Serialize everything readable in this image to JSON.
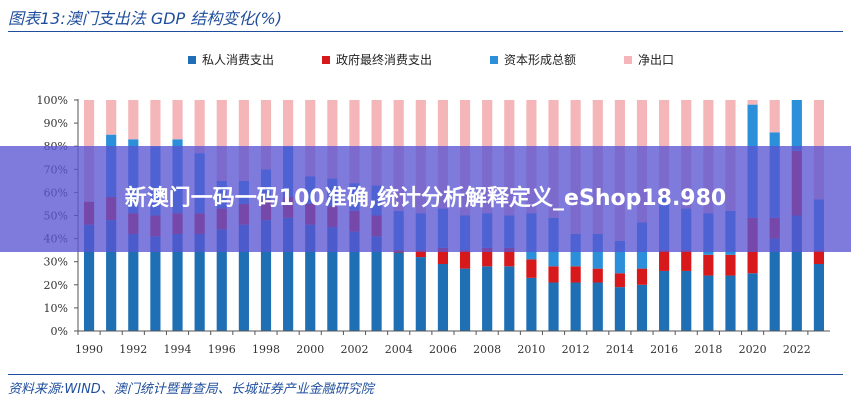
{
  "figure": {
    "title": "图表13:澳门支出法 GDP 结构变化(%)",
    "source": "资料来源:WIND、澳门统计暨普查局、长城证券产业金融研究院"
  },
  "banner": {
    "text": "新澳门一码一码100准确,统计分析解释定义_eShop18.980"
  },
  "colors": {
    "private": "#1f6fb5",
    "government": "#d7191c",
    "capital": "#2c8fd9",
    "netexport": "#f4b6b8",
    "axis": "#555555",
    "title": "#1f4e9c"
  },
  "chart_data": {
    "type": "bar",
    "stacked": true,
    "title": "",
    "xlabel": "",
    "ylabel": "",
    "ylim": [
      0,
      100
    ],
    "yticks": [
      "0%",
      "10%",
      "20%",
      "30%",
      "40%",
      "50%",
      "60%",
      "70%",
      "80%",
      "90%",
      "100%"
    ],
    "xtick_labels": [
      "1990",
      "1992",
      "1994",
      "1996",
      "1998",
      "2000",
      "2002",
      "2004",
      "2006",
      "2008",
      "2010",
      "2012",
      "2014",
      "2016",
      "2018",
      "2020",
      "2022"
    ],
    "legend_position": "top",
    "categories": [
      "1990",
      "1991",
      "1992",
      "1993",
      "1994",
      "1995",
      "1996",
      "1997",
      "1998",
      "1999",
      "2000",
      "2001",
      "2002",
      "2003",
      "2004",
      "2005",
      "2006",
      "2007",
      "2008",
      "2009",
      "2010",
      "2011",
      "2012",
      "2013",
      "2014",
      "2015",
      "2016",
      "2017",
      "2018",
      "2019",
      "2020",
      "2021",
      "2022",
      "2023"
    ],
    "series": [
      {
        "name": "私人消费支出",
        "key": "private",
        "values": [
          46,
          48,
          42,
          41,
          42,
          42,
          44,
          46,
          48,
          49,
          46,
          45,
          43,
          41,
          34,
          32,
          29,
          27,
          28,
          28,
          23,
          21,
          21,
          21,
          19,
          20,
          26,
          26,
          24,
          24,
          25,
          40,
          50,
          29
        ]
      },
      {
        "name": "政府最终消费支出",
        "key": "government",
        "values": [
          10,
          10,
          9,
          9,
          9,
          9,
          9,
          9,
          9,
          9,
          9,
          9,
          9,
          9,
          1,
          3,
          7,
          8,
          8,
          8,
          8,
          7,
          7,
          6,
          6,
          7,
          9,
          9,
          9,
          9,
          24,
          9,
          28,
          6
        ]
      },
      {
        "name": "资本形成总额",
        "key": "capital",
        "values": [
          0,
          27,
          32,
          30,
          32,
          26,
          12,
          10,
          13,
          22,
          12,
          12,
          12,
          13,
          17,
          16,
          17,
          15,
          15,
          14,
          20,
          21,
          14,
          15,
          14,
          20,
          23,
          18,
          18,
          19,
          49,
          37,
          22,
          22
        ]
      },
      {
        "name": "净出口",
        "key": "netexport",
        "values": [
          44,
          15,
          17,
          20,
          17,
          23,
          35,
          35,
          30,
          20,
          33,
          34,
          36,
          37,
          48,
          49,
          47,
          50,
          49,
          50,
          49,
          51,
          58,
          58,
          61,
          53,
          42,
          47,
          49,
          48,
          2,
          14,
          0,
          43
        ]
      }
    ]
  }
}
